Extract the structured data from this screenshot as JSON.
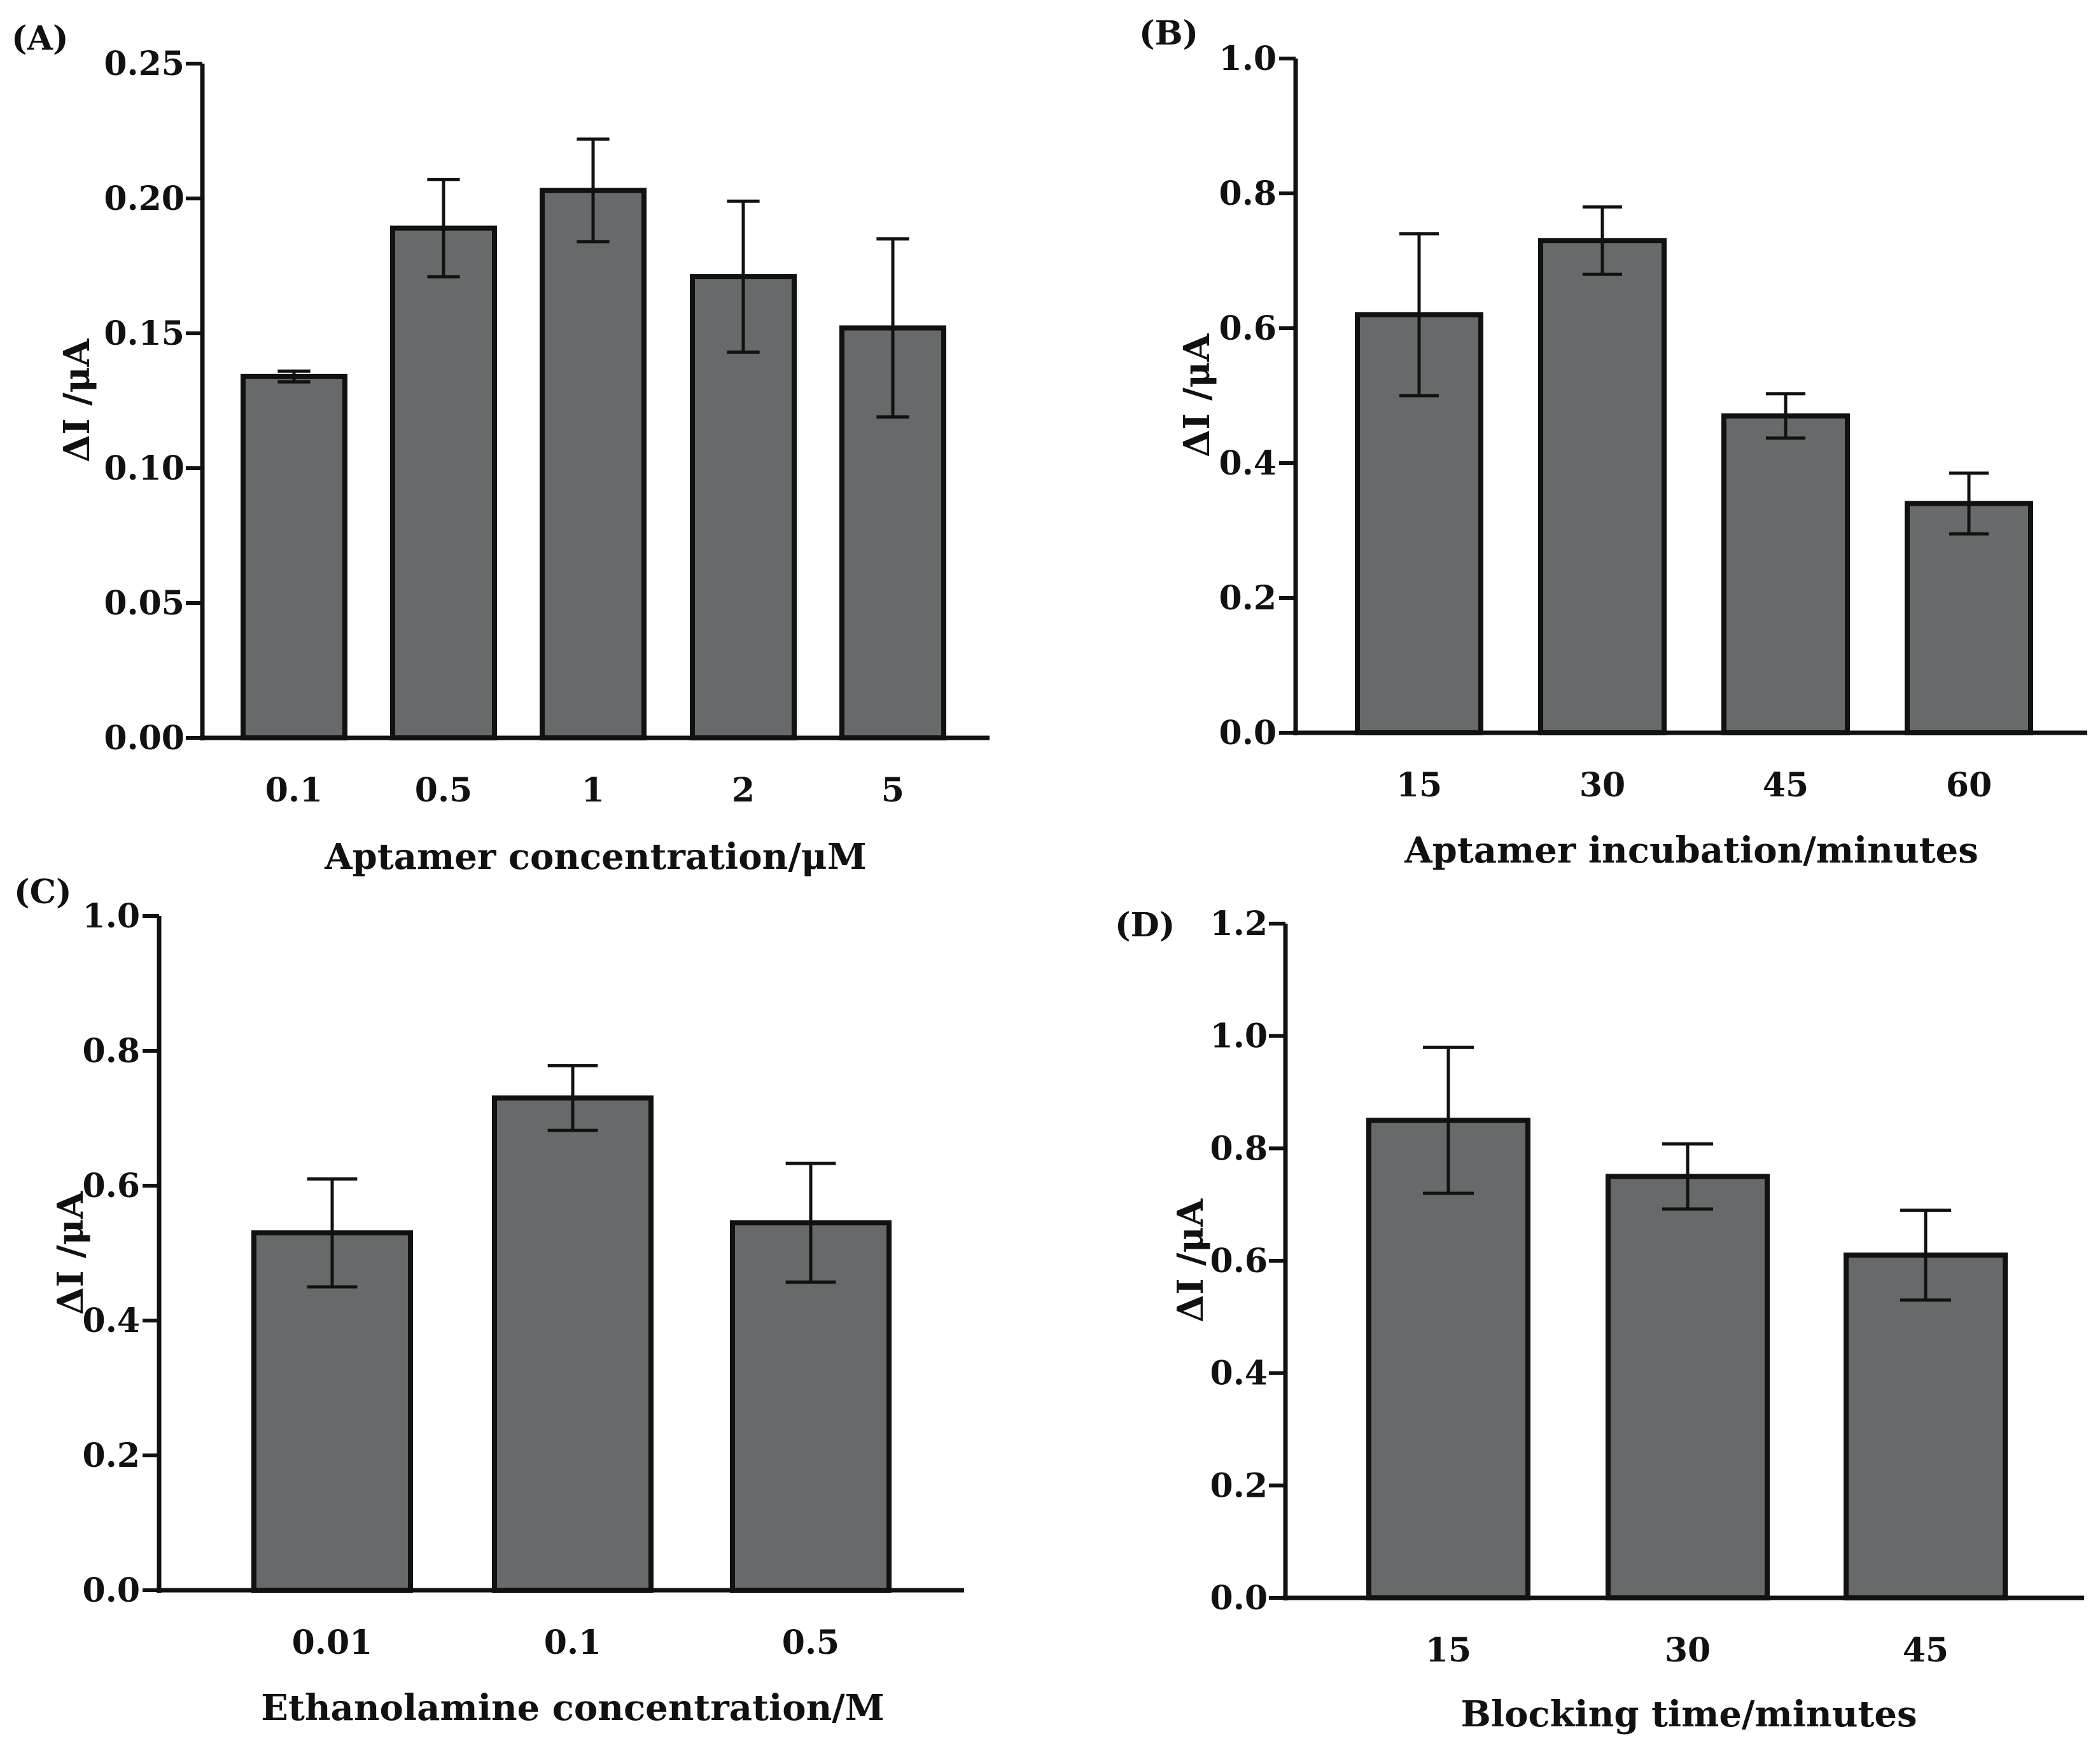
{
  "colors": {
    "bar_fill": "#676a6b",
    "stroke": "#111111",
    "background": "#ffffff"
  },
  "chart_data": [
    {
      "panel": "(A)",
      "type": "bar",
      "categories": [
        "0.1",
        "0.5",
        "1",
        "2",
        "5"
      ],
      "values": [
        0.134,
        0.189,
        0.203,
        0.171,
        0.152
      ],
      "errors": [
        0.002,
        0.018,
        0.019,
        0.028,
        0.033
      ],
      "xlabel": "Aptamer concentration/μM",
      "ylabel": "ΔI /μA",
      "ylim": [
        0,
        0.25
      ],
      "yticks": [
        "0.00",
        "0.05",
        "0.10",
        "0.15",
        "0.20",
        "0.25"
      ]
    },
    {
      "panel": "(B)",
      "type": "bar",
      "categories": [
        "15",
        "30",
        "45",
        "60"
      ],
      "values": [
        0.62,
        0.73,
        0.47,
        0.34
      ],
      "errors": [
        0.12,
        0.05,
        0.033,
        0.045
      ],
      "xlabel": "Aptamer incubation/minutes",
      "ylabel": "ΔI /μA",
      "ylim": [
        0,
        1.0
      ],
      "yticks": [
        "0.0",
        "0.2",
        "0.4",
        "0.6",
        "0.8",
        "1.0"
      ]
    },
    {
      "panel": "(C)",
      "type": "bar",
      "categories": [
        "0.01",
        "0.1",
        "0.5"
      ],
      "values": [
        0.53,
        0.73,
        0.545
      ],
      "errors": [
        0.08,
        0.048,
        0.088
      ],
      "xlabel": "Ethanolamine concentration/M",
      "ylabel": "ΔI /μA",
      "ylim": [
        0,
        1.0
      ],
      "yticks": [
        "0.0",
        "0.2",
        "0.4",
        "0.6",
        "0.8",
        "1.0"
      ]
    },
    {
      "panel": "(D)",
      "type": "bar",
      "categories": [
        "15",
        "30",
        "45"
      ],
      "values": [
        0.85,
        0.75,
        0.61
      ],
      "errors": [
        0.13,
        0.058,
        0.08
      ],
      "xlabel": "Blocking time/minutes",
      "ylabel": "ΔI /μA",
      "ylim": [
        0,
        1.2
      ],
      "yticks": [
        "0.0",
        "0.2",
        "0.4",
        "0.6",
        "0.8",
        "1.0",
        "1.2"
      ]
    }
  ]
}
